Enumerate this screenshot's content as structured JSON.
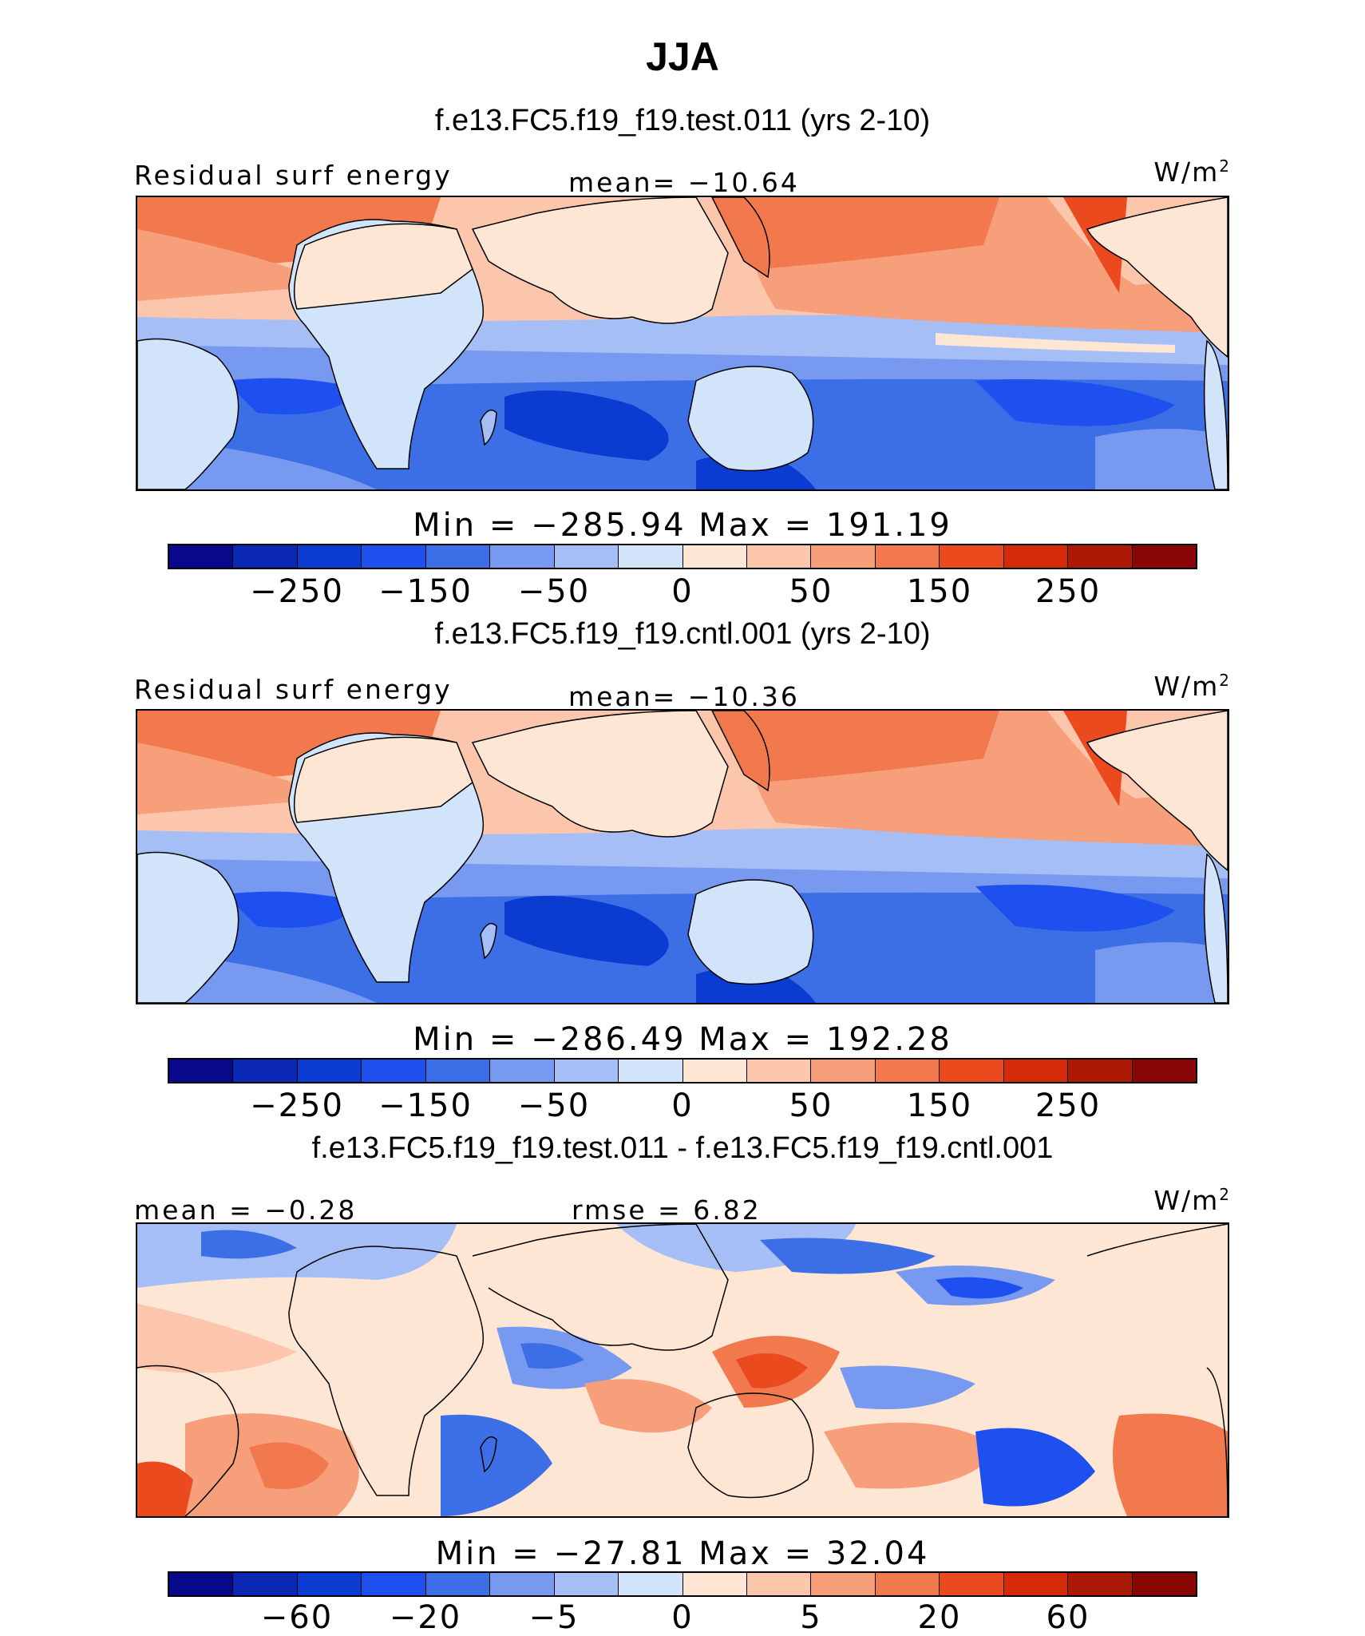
{
  "title": "JJA",
  "colors": [
    "#08088c",
    "#0a28b4",
    "#0a3cd2",
    "#1e50f0",
    "#3c6ee6",
    "#7899f0",
    "#a5bef5",
    "#d2e4fa",
    "#fde6d3",
    "#fbc6ab",
    "#f79e7a",
    "#f2784e",
    "#eb4a1f",
    "#d52a0a",
    "#ac1a06",
    "#8a0505"
  ],
  "panels": [
    {
      "run_title": "f.e13.FC5.f19_f19.test.011 (yrs 2-10)",
      "left_label": "Residual surf energy",
      "center_label": "mean= −10.64",
      "units": "W/m",
      "units_sup": "2",
      "minmax": "Min = −285.94 Max = 191.19",
      "ticks": [
        "−250",
        "−150",
        "−50",
        "0",
        "50",
        "150",
        "250"
      ]
    },
    {
      "run_title": "f.e13.FC5.f19_f19.cntl.001 (yrs 2-10)",
      "left_label": "Residual surf energy",
      "center_label": "mean= −10.36",
      "units": "W/m",
      "units_sup": "2",
      "minmax": "Min = −286.49 Max = 192.28",
      "ticks": [
        "−250",
        "−150",
        "−50",
        "0",
        "50",
        "150",
        "250"
      ]
    },
    {
      "run_title": "f.e13.FC5.f19_f19.test.011 - f.e13.FC5.f19_f19.cntl.001",
      "left_label": "mean =  −0.28",
      "center_label": "rmse =   6.82",
      "units": "W/m",
      "units_sup": "2",
      "minmax": "Min = −27.81 Max =  32.04",
      "ticks": [
        "−60",
        "−20",
        "−5",
        "0",
        "5",
        "20",
        "60"
      ]
    }
  ]
}
